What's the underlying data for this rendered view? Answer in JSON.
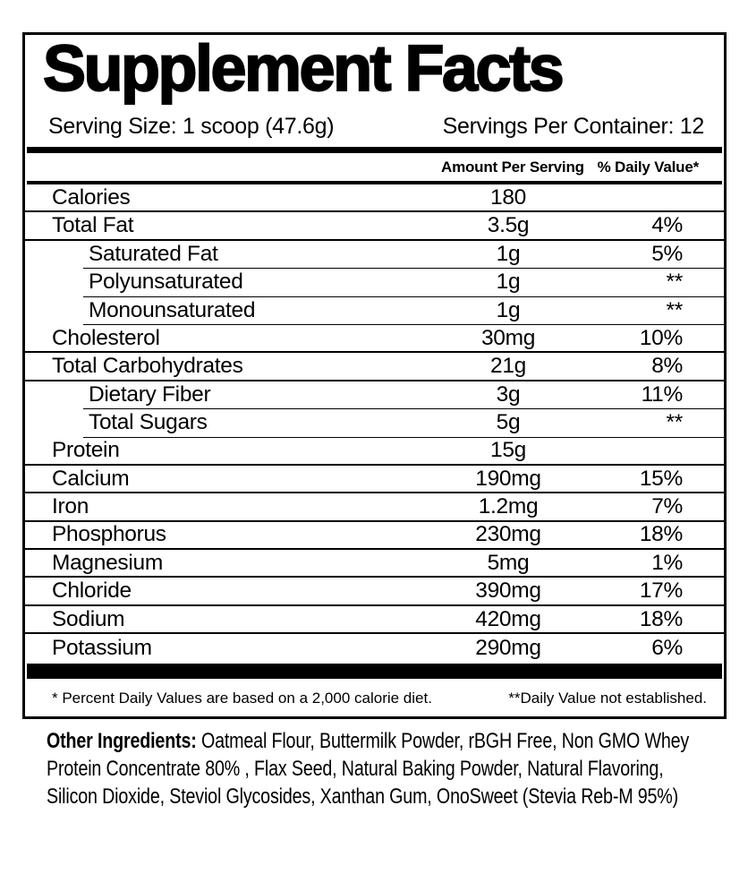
{
  "title": "Supplement Facts",
  "serving": {
    "size_label": "Serving Size: 1 scoop (47.6g)",
    "per_container": "Servings Per Container: 12"
  },
  "table": {
    "amount_header": "Amount Per Serving",
    "dv_header": "% Daily Value*",
    "rows": [
      {
        "label": "Calories",
        "amount": "180",
        "dv": "",
        "indent": false
      },
      {
        "label": "Total Fat",
        "amount": "3.5g",
        "dv": "4%",
        "indent": false
      },
      {
        "label": "Saturated Fat",
        "amount": "1g",
        "dv": "5%",
        "indent": true
      },
      {
        "label": "Polyunsaturated",
        "amount": "1g",
        "dv": "**",
        "indent": true
      },
      {
        "label": "Monounsaturated",
        "amount": "1g",
        "dv": "**",
        "indent": true
      },
      {
        "label": "Cholesterol",
        "amount": "30mg",
        "dv": "10%",
        "indent": false
      },
      {
        "label": "Total Carbohydrates",
        "amount": "21g",
        "dv": "8%",
        "indent": false
      },
      {
        "label": "Dietary Fiber",
        "amount": "3g",
        "dv": "11%",
        "indent": true
      },
      {
        "label": "Total Sugars",
        "amount": "5g",
        "dv": "**",
        "indent": true
      },
      {
        "label": "Protein",
        "amount": "15g",
        "dv": "",
        "indent": false
      },
      {
        "label": "Calcium",
        "amount": "190mg",
        "dv": "15%",
        "indent": false
      },
      {
        "label": "Iron",
        "amount": "1.2mg",
        "dv": "7%",
        "indent": false
      },
      {
        "label": "Phosphorus",
        "amount": "230mg",
        "dv": "18%",
        "indent": false
      },
      {
        "label": "Magnesium",
        "amount": "5mg",
        "dv": "1%",
        "indent": false
      },
      {
        "label": "Chloride",
        "amount": "390mg",
        "dv": "17%",
        "indent": false
      },
      {
        "label": "Sodium",
        "amount": "420mg",
        "dv": "18%",
        "indent": false
      },
      {
        "label": "Potassium",
        "amount": "290mg",
        "dv": "6%",
        "indent": false
      }
    ]
  },
  "footnotes": {
    "daily_values": "* Percent Daily Values are based on a 2,000 calorie diet.",
    "not_established": "**Daily Value not established."
  },
  "ingredients": {
    "lead": "Other Ingredients:",
    "text": " Oatmeal Flour, Buttermilk Powder, rBGH Free, Non GMO Whey Protein Concentrate 80% , Flax Seed, Natural Baking Powder, Natural Flavoring, Silicon Dioxide, Steviol Glycosides, Xanthan Gum, OnoSweet (Stevia Reb-M 95%)"
  },
  "colors": {
    "ink": "#000000",
    "background": "#ffffff"
  }
}
